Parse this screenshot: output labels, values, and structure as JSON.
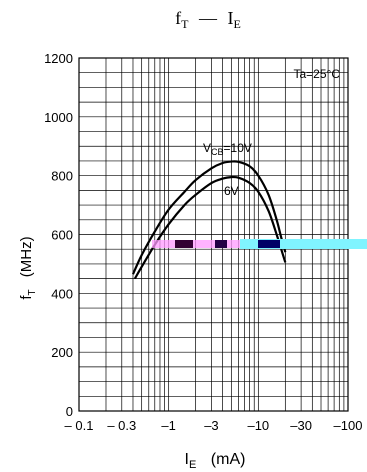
{
  "chart_data": {
    "type": "line",
    "title": {
      "main_f": "f",
      "main_sub": "T",
      "dash": "—",
      "main_i": "I",
      "main_isub": "E"
    },
    "ylabel": {
      "main": "f",
      "sub": "T",
      "unit": "(MHz)"
    },
    "xlabel": {
      "main": "I",
      "sub": "E",
      "unit": "(mA)"
    },
    "annotation": "Ta=25°C",
    "x_scale": "log",
    "x_display_sign": "negative",
    "xlim": [
      -0.1,
      -100
    ],
    "ylim": [
      0,
      1200
    ],
    "grid": true,
    "x_ticks": [
      {
        "value": -0.1,
        "label": "– 0.1"
      },
      {
        "value": -0.3,
        "label": "– 0.3"
      },
      {
        "value": -1,
        "label": "–1"
      },
      {
        "value": -3,
        "label": "–3"
      },
      {
        "value": -10,
        "label": "–10"
      },
      {
        "value": -30,
        "label": "–30"
      },
      {
        "value": -100,
        "label": "–100"
      }
    ],
    "y_ticks": [
      0,
      200,
      400,
      600,
      800,
      1000,
      1200
    ],
    "series": [
      {
        "name": "VCB=10V",
        "label_main": "V",
        "label_sub": "CB",
        "label_rest": "=10V",
        "x": [
          -0.4,
          -0.5,
          -0.7,
          -1,
          -1.5,
          -2,
          -3,
          -4,
          -5,
          -6,
          -8,
          -10,
          -13,
          -16,
          -18,
          -20
        ],
        "y": [
          465,
          530,
          610,
          685,
          745,
          785,
          825,
          843,
          848,
          847,
          832,
          800,
          735,
          650,
          590,
          540
        ]
      },
      {
        "name": "6V",
        "label_main": "6V",
        "x": [
          -0.42,
          -0.5,
          -0.7,
          -1,
          -1.5,
          -2,
          -3,
          -4,
          -5,
          -6,
          -8,
          -10,
          -13,
          -16,
          -18,
          -20
        ],
        "y": [
          450,
          490,
          565,
          635,
          700,
          735,
          775,
          790,
          795,
          793,
          775,
          745,
          680,
          600,
          550,
          505
        ]
      }
    ]
  }
}
